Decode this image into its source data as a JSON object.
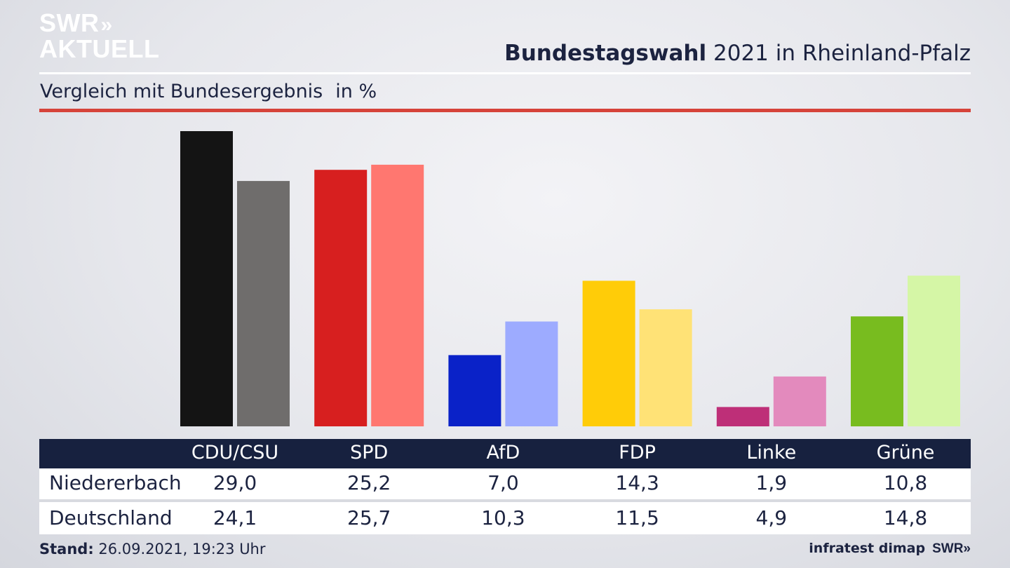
{
  "brand": {
    "logo_line1": "SWR",
    "logo_line2": "AKTUELL",
    "logo_chevrons": "»",
    "footer_logo": "SWR»"
  },
  "header": {
    "title_bold": "Bundestagswahl",
    "title_rest": "2021 in Rheinland-Pfalz",
    "subtitle": "Vergleich mit Bundesergebnis",
    "unit": "in %"
  },
  "chart_data": {
    "type": "bar",
    "categories": [
      "CDU/CSU",
      "SPD",
      "AfD",
      "FDP",
      "Linke",
      "Grüne"
    ],
    "series": [
      {
        "name": "Niedererbach",
        "values": [
          29.0,
          25.2,
          7.0,
          14.3,
          1.9,
          10.8
        ]
      },
      {
        "name": "Deutschland",
        "values": [
          24.1,
          25.7,
          10.3,
          11.5,
          4.9,
          14.8
        ]
      }
    ],
    "display_values": [
      [
        "29,0",
        "25,2",
        "7,0",
        "14,3",
        "1,9",
        "10,8"
      ],
      [
        "24,1",
        "25,7",
        "10,3",
        "11,5",
        "4,9",
        "14,8"
      ]
    ],
    "colors": [
      [
        "#141414",
        "#6f6d6c"
      ],
      [
        "#d71f1f",
        "#ff7770"
      ],
      [
        "#0a22c8",
        "#9dabff"
      ],
      [
        "#ffcc08",
        "#ffe276"
      ],
      [
        "#be2f78",
        "#e38abd"
      ],
      [
        "#78bc1f",
        "#d5f6a6"
      ]
    ],
    "ylim": [
      0,
      29.0
    ],
    "grid": false,
    "legend": "table-below"
  },
  "footer": {
    "stand_label": "Stand:",
    "stand_value": "26.09.2021, 19:23 Uhr",
    "source": "infratest dimap"
  }
}
